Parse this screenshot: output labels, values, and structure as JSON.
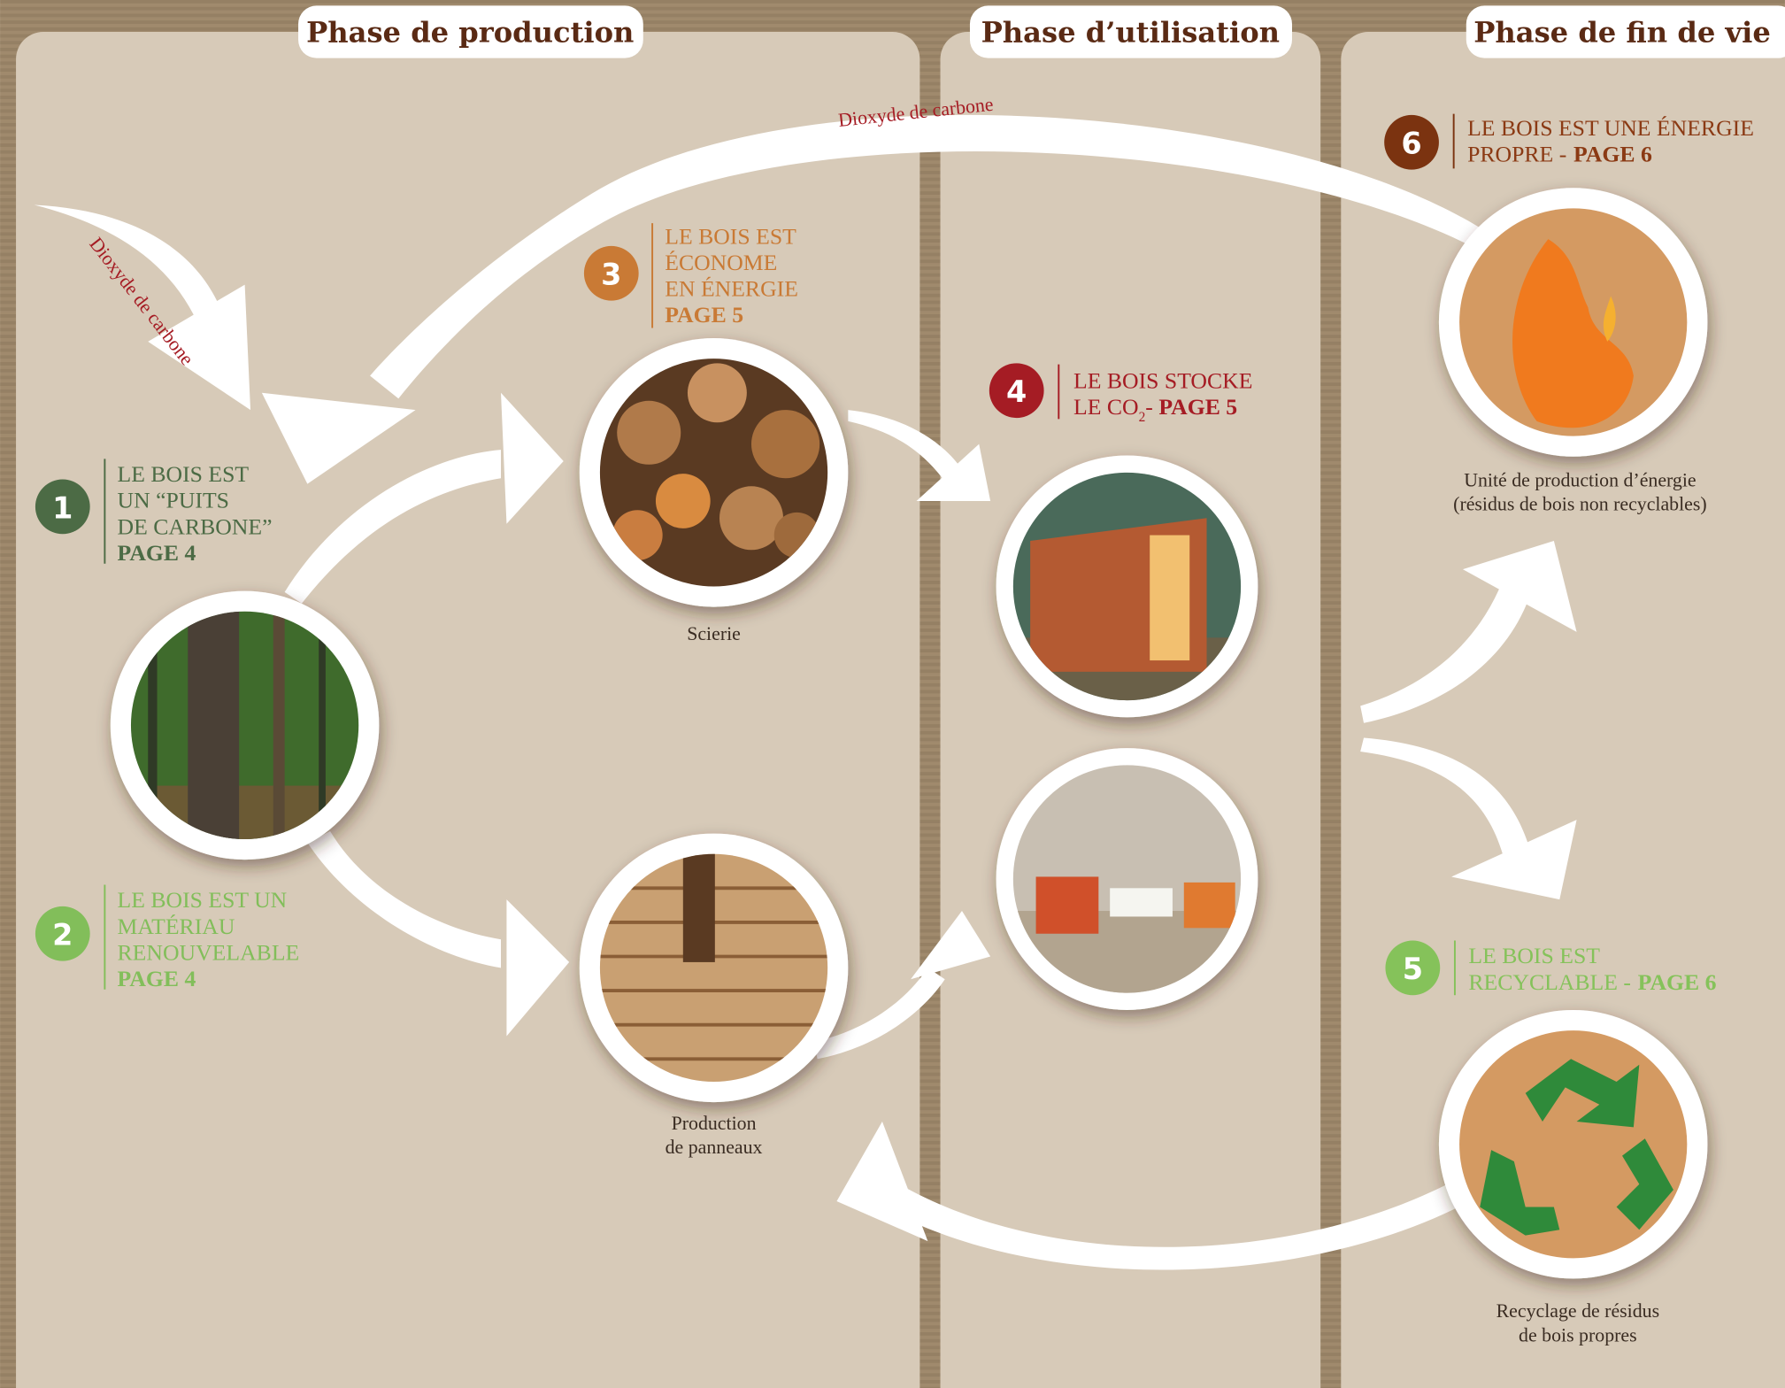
{
  "phases": [
    "Phase de production",
    "Phase d’utilisation",
    "Phase de fin de vie"
  ],
  "arrow_labels": [
    "Dioxyde de carbone",
    "Dioxyde de carbone"
  ],
  "callouts": [
    {
      "number": "1",
      "lines": [
        "LE BOIS EST",
        "UN “PUITS",
        "DE CARBONE”"
      ],
      "page": "PAGE 4"
    },
    {
      "number": "2",
      "lines": [
        "LE BOIS EST UN",
        "MATÉRIAU",
        "RENOUVELABLE"
      ],
      "page": "PAGE 4"
    },
    {
      "number": "3",
      "lines": [
        "LE BOIS EST",
        "ÉCONOME",
        "EN ÉNERGIE"
      ],
      "page": "PAGE 5"
    },
    {
      "number": "4",
      "lines": [
        "LE BOIS STOCKE",
        "LE CO"
      ],
      "subscript": "2",
      "separator": "-",
      "page": "PAGE 5"
    },
    {
      "number": "5",
      "lines": [
        "LE BOIS EST",
        "RECYCLABLE -"
      ],
      "page": "PAGE 6"
    },
    {
      "number": "6",
      "lines": [
        "LE BOIS EST UNE ÉNERGIE",
        "PROPRE -"
      ],
      "page": "PAGE 6"
    }
  ],
  "captions": [
    [
      "Scierie"
    ],
    [
      "Production",
      "de panneaux"
    ],
    [
      "Unité de production d’énergie",
      "(résidus de bois non recyclables)"
    ],
    [
      "Recyclage de résidus",
      "de bois propres"
    ]
  ]
}
